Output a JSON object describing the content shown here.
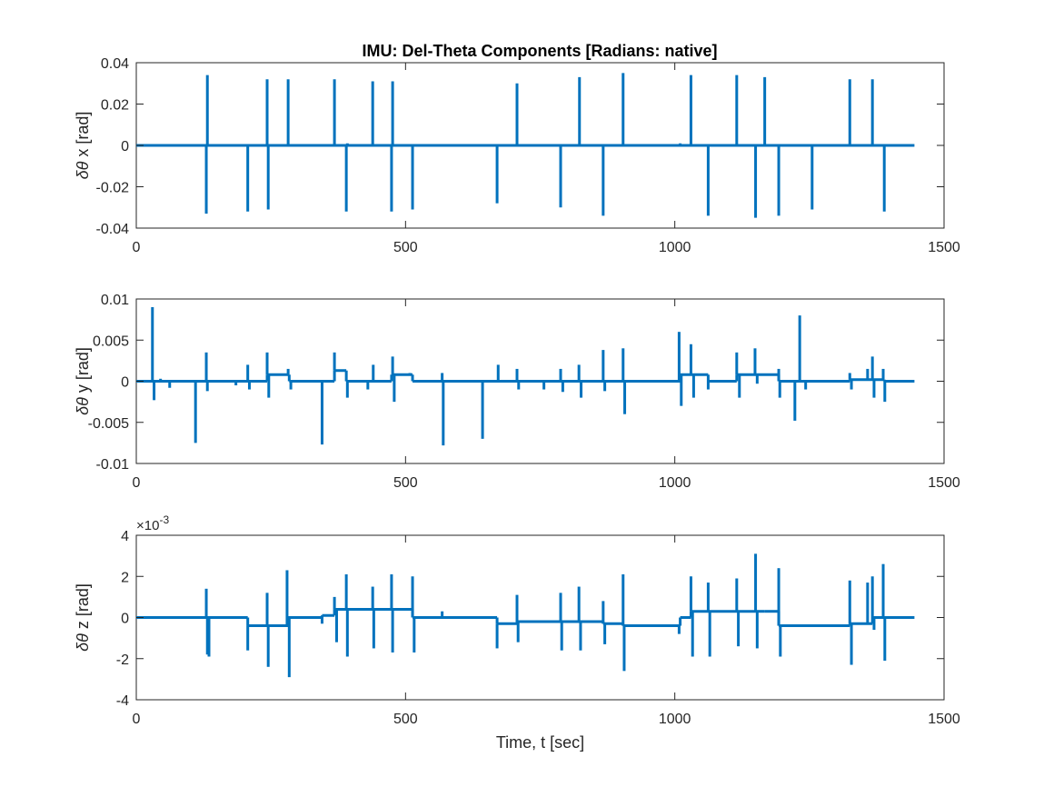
{
  "title": "IMU: Del-Theta Components [Radians: native]",
  "colors": {
    "series": "#0072BD",
    "axes": "#262626",
    "background": "#ffffff"
  },
  "chart_data": [
    {
      "type": "line",
      "ylabel_prefix": "δθ",
      "ylabel_suffix": " x [rad]",
      "xlabel": "",
      "xlim": [
        0,
        1500
      ],
      "ylim": [
        -0.04,
        0.04
      ],
      "xticks": [
        "0",
        "500",
        "1000",
        "1500"
      ],
      "yticks": [
        "-0.04",
        "-0.02",
        "0",
        "0.02",
        "0.04"
      ],
      "exponent_label": "",
      "baseline": 0,
      "data_x_end": 1445,
      "spikes": [
        [
          130,
          -0.033
        ],
        [
          132,
          0.034
        ],
        [
          207,
          -0.032
        ],
        [
          243,
          0.032
        ],
        [
          245,
          -0.031
        ],
        [
          282,
          0.032
        ],
        [
          368,
          0.032
        ],
        [
          390,
          -0.032
        ],
        [
          392,
          0.001
        ],
        [
          439,
          0.031
        ],
        [
          474,
          -0.032
        ],
        [
          476,
          0.031
        ],
        [
          513,
          -0.031
        ],
        [
          670,
          -0.028
        ],
        [
          707,
          0.03
        ],
        [
          788,
          -0.03
        ],
        [
          823,
          0.033
        ],
        [
          867,
          -0.034
        ],
        [
          904,
          0.035
        ],
        [
          1010,
          0.001
        ],
        [
          1030,
          0.034
        ],
        [
          1062,
          -0.034
        ],
        [
          1115,
          0.034
        ],
        [
          1150,
          -0.035
        ],
        [
          1167,
          0.033
        ],
        [
          1193,
          -0.034
        ],
        [
          1255,
          -0.031
        ],
        [
          1325,
          0.032
        ],
        [
          1367,
          0.032
        ],
        [
          1389,
          -0.032
        ]
      ]
    },
    {
      "type": "line",
      "ylabel_prefix": "δθ",
      "ylabel_suffix": " y [rad]",
      "xlabel": "",
      "xlim": [
        0,
        1500
      ],
      "ylim": [
        -0.01,
        0.01
      ],
      "xticks": [
        "0",
        "500",
        "1000",
        "1500"
      ],
      "yticks": [
        "-0.01",
        "-0.005",
        "0",
        "0.005",
        "0.01"
      ],
      "exponent_label": "",
      "baseline": 0,
      "data_x_end": 1445,
      "steps": [
        [
          0,
          0
        ],
        [
          243,
          0.0008
        ],
        [
          284,
          0
        ],
        [
          368,
          0.0013
        ],
        [
          390,
          0
        ],
        [
          474,
          0.0008
        ],
        [
          513,
          0
        ],
        [
          1010,
          0.0008
        ],
        [
          1062,
          0
        ],
        [
          1115,
          0.0008
        ],
        [
          1193,
          0
        ],
        [
          1325,
          0.0002
        ],
        [
          1389,
          0
        ]
      ],
      "spikes": [
        [
          30,
          0.009
        ],
        [
          33,
          -0.0023
        ],
        [
          45,
          0.0003
        ],
        [
          62,
          -0.0008
        ],
        [
          110,
          -0.0075
        ],
        [
          130,
          0.0035
        ],
        [
          132,
          -0.0012
        ],
        [
          185,
          -0.0005
        ],
        [
          207,
          0.002
        ],
        [
          210,
          -0.001
        ],
        [
          243,
          0.0035
        ],
        [
          246,
          -0.002
        ],
        [
          282,
          0.0015
        ],
        [
          287,
          -0.001
        ],
        [
          345,
          -0.0077
        ],
        [
          368,
          0.0035
        ],
        [
          392,
          -0.002
        ],
        [
          430,
          -0.001
        ],
        [
          440,
          0.002
        ],
        [
          476,
          0.003
        ],
        [
          479,
          -0.0025
        ],
        [
          508,
          0.001
        ],
        [
          568,
          0.001
        ],
        [
          570,
          -0.0078
        ],
        [
          643,
          -0.007
        ],
        [
          672,
          0.002
        ],
        [
          707,
          0.0015
        ],
        [
          710,
          -0.001
        ],
        [
          757,
          -0.001
        ],
        [
          788,
          0.0015
        ],
        [
          792,
          -0.0013
        ],
        [
          822,
          0.002
        ],
        [
          826,
          -0.002
        ],
        [
          867,
          0.0038
        ],
        [
          870,
          -0.0012
        ],
        [
          904,
          0.004
        ],
        [
          907,
          -0.004
        ],
        [
          1008,
          0.006
        ],
        [
          1012,
          -0.003
        ],
        [
          1030,
          0.0045
        ],
        [
          1035,
          -0.002
        ],
        [
          1062,
          -0.001
        ],
        [
          1115,
          0.0035
        ],
        [
          1120,
          -0.002
        ],
        [
          1149,
          0.004
        ],
        [
          1153,
          -0.0003
        ],
        [
          1193,
          0.0015
        ],
        [
          1195,
          -0.002
        ],
        [
          1223,
          -0.0048
        ],
        [
          1232,
          0.008
        ],
        [
          1243,
          -0.001
        ],
        [
          1325,
          0.001
        ],
        [
          1328,
          -0.001
        ],
        [
          1358,
          0.0015
        ],
        [
          1367,
          0.003
        ],
        [
          1370,
          -0.002
        ],
        [
          1387,
          0.0015
        ],
        [
          1390,
          -0.0025
        ]
      ]
    },
    {
      "type": "line",
      "ylabel_prefix": "δθ",
      "ylabel_suffix": " z [rad]",
      "xlabel": "Time, t [sec]",
      "xlim": [
        0,
        1500
      ],
      "ylim": [
        -4,
        4
      ],
      "xticks": [
        "0",
        "500",
        "1000",
        "1500"
      ],
      "yticks": [
        "-4",
        "-2",
        "0",
        "2",
        "4"
      ],
      "exponent_label": "×10",
      "exponent_power": "-3",
      "baseline": 0,
      "data_x_end": 1445,
      "steps": [
        [
          0,
          0
        ],
        [
          207,
          -0.4
        ],
        [
          282,
          0
        ],
        [
          345,
          0.1
        ],
        [
          368,
          0.4
        ],
        [
          513,
          0
        ],
        [
          670,
          -0.3
        ],
        [
          707,
          -0.2
        ],
        [
          867,
          -0.3
        ],
        [
          904,
          -0.4
        ],
        [
          1010,
          0
        ],
        [
          1030,
          0.3
        ],
        [
          1150,
          0.3
        ],
        [
          1167,
          0.3
        ],
        [
          1193,
          -0.4
        ],
        [
          1325,
          -0.3
        ],
        [
          1367,
          0
        ],
        [
          1389,
          0
        ]
      ],
      "spikes": [
        [
          130,
          1.4
        ],
        [
          132,
          -1.8
        ],
        [
          135,
          -1.9
        ],
        [
          207,
          -1.6
        ],
        [
          243,
          1.2
        ],
        [
          245,
          -2.4
        ],
        [
          280,
          2.3
        ],
        [
          284,
          -2.9
        ],
        [
          345,
          -0.3
        ],
        [
          368,
          1.0
        ],
        [
          372,
          -1.2
        ],
        [
          390,
          2.1
        ],
        [
          392,
          -1.9
        ],
        [
          439,
          1.5
        ],
        [
          441,
          -1.5
        ],
        [
          474,
          2.1
        ],
        [
          476,
          -1.7
        ],
        [
          513,
          2.0
        ],
        [
          516,
          -1.7
        ],
        [
          568,
          0.3
        ],
        [
          670,
          -1.5
        ],
        [
          707,
          1.1
        ],
        [
          709,
          -1.2
        ],
        [
          788,
          1.2
        ],
        [
          790,
          -1.6
        ],
        [
          822,
          1.5
        ],
        [
          825,
          -1.6
        ],
        [
          867,
          0.8
        ],
        [
          870,
          -1.3
        ],
        [
          904,
          2.1
        ],
        [
          906,
          -2.6
        ],
        [
          1008,
          -0.8
        ],
        [
          1030,
          2.0
        ],
        [
          1033,
          -1.9
        ],
        [
          1062,
          1.7
        ],
        [
          1065,
          -1.9
        ],
        [
          1115,
          1.9
        ],
        [
          1118,
          -1.4
        ],
        [
          1150,
          3.1
        ],
        [
          1153,
          -1.5
        ],
        [
          1193,
          2.4
        ],
        [
          1196,
          -1.9
        ],
        [
          1325,
          1.8
        ],
        [
          1328,
          -2.3
        ],
        [
          1358,
          1.7
        ],
        [
          1367,
          2.0
        ],
        [
          1370,
          -0.6
        ],
        [
          1387,
          2.6
        ],
        [
          1390,
          -2.1
        ]
      ]
    }
  ]
}
